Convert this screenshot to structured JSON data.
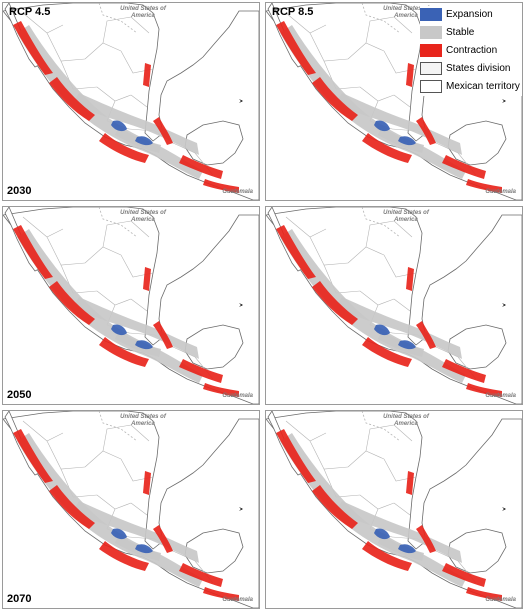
{
  "panels": [
    {
      "scenario": "RCP 4.5",
      "year": "2030"
    },
    {
      "scenario": "RCP 8.5",
      "year": ""
    },
    {
      "scenario": "",
      "year": "2050"
    },
    {
      "scenario": "",
      "year": ""
    },
    {
      "scenario": "",
      "year": "2070"
    },
    {
      "scenario": "",
      "year": ""
    }
  ],
  "map_labels": {
    "usa": "United States of America",
    "guatemala": "Guatemala"
  },
  "legend": [
    {
      "label": "Expansion",
      "color": "#3a62b5"
    },
    {
      "label": "Stable",
      "color": "#c8c8c8"
    },
    {
      "label": "Contraction",
      "color": "#e8251c"
    },
    {
      "label": "States division",
      "color": "#f4f4f4"
    },
    {
      "label": "Mexican territory",
      "color": "#ffffff"
    }
  ],
  "colors": {
    "expansion": "#3a62b5",
    "stable": "#c8c8c8",
    "contraction": "#e8251c",
    "land_outline": "#6b6b6b",
    "state_lines": "#b5b5b5"
  }
}
